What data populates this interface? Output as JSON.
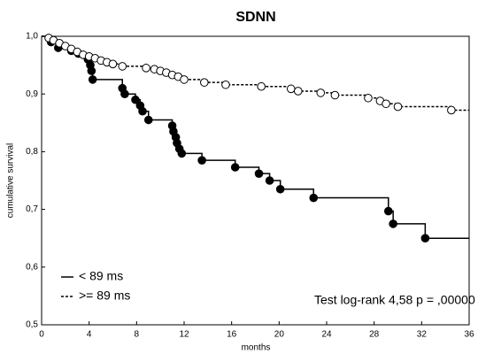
{
  "chart_data": {
    "type": "step",
    "title": "SDNN",
    "xlabel": "months",
    "ylabel": "cumulative survival",
    "xlim": [
      0,
      36
    ],
    "xticks": [
      0,
      4,
      8,
      12,
      16,
      20,
      24,
      28,
      32,
      36
    ],
    "ylim": [
      0.5,
      1.0
    ],
    "yticks": [
      {
        "value": 0.5,
        "label": "0,5"
      },
      {
        "value": 0.6,
        "label": "0,6"
      },
      {
        "value": 0.7,
        "label": "0,7"
      },
      {
        "value": 0.8,
        "label": "0,8"
      },
      {
        "value": 0.9,
        "label": "0,9"
      },
      {
        "value": 1.0,
        "label": "1,0"
      }
    ],
    "legend": "lower left",
    "annotation": "Test log-rank 4,58 p = ,00000",
    "series": [
      {
        "name": "< 89 ms",
        "color": "#000000",
        "style": "solid",
        "marker": "filled",
        "x": [
          0,
          0.8,
          1.4,
          2.5,
          3.1,
          3.9,
          4.1,
          4.2,
          4.3,
          6.8,
          7.0,
          7.9,
          8.3,
          8.5,
          9.0,
          11.0,
          11.1,
          11.3,
          11.4,
          11.6,
          11.8,
          13.5,
          16.3,
          18.3,
          19.2,
          20.1,
          22.9,
          29.2,
          29.6,
          32.3,
          36
        ],
        "values": [
          1.0,
          0.99,
          0.98,
          0.975,
          0.97,
          0.96,
          0.95,
          0.94,
          0.925,
          0.91,
          0.9,
          0.89,
          0.88,
          0.87,
          0.855,
          0.845,
          0.835,
          0.825,
          0.815,
          0.805,
          0.797,
          0.785,
          0.773,
          0.762,
          0.75,
          0.735,
          0.72,
          0.697,
          0.675,
          0.65,
          0.65
        ]
      },
      {
        "name": ">= 89 ms",
        "color": "#000000",
        "style": "dashed",
        "marker": "open",
        "x": [
          0,
          0.6,
          1.0,
          1.5,
          2.0,
          2.5,
          3.0,
          3.5,
          4.0,
          4.5,
          5.0,
          5.5,
          6.0,
          6.8,
          8.8,
          9.5,
          10.0,
          10.5,
          11.0,
          11.5,
          12.0,
          13.7,
          15.5,
          18.5,
          21.0,
          21.6,
          23.5,
          24.7,
          27.5,
          28.5,
          29.0,
          30.0,
          34.5,
          36
        ],
        "values": [
          1.0,
          0.997,
          0.993,
          0.988,
          0.983,
          0.978,
          0.973,
          0.968,
          0.965,
          0.962,
          0.958,
          0.955,
          0.952,
          0.948,
          0.945,
          0.943,
          0.94,
          0.937,
          0.933,
          0.93,
          0.925,
          0.92,
          0.916,
          0.913,
          0.909,
          0.905,
          0.902,
          0.898,
          0.893,
          0.888,
          0.883,
          0.878,
          0.872,
          0.872
        ]
      }
    ]
  }
}
